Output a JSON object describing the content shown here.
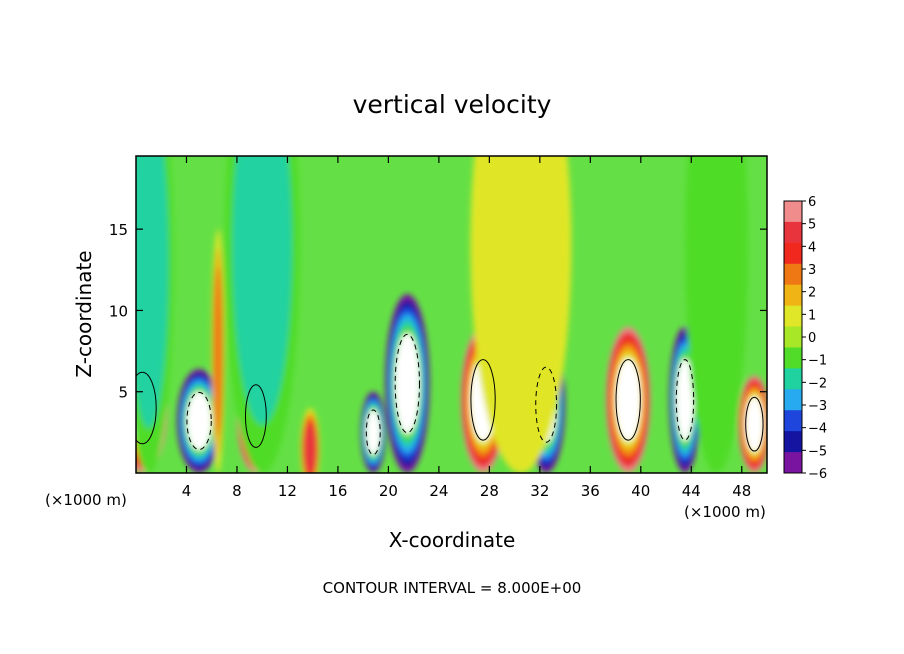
{
  "chart_data": {
    "type": "heatmap",
    "title": "vertical velocity",
    "xlabel": "X-coordinate",
    "ylabel": "Z-coordinate",
    "x_unit_left": "(×1000 m)",
    "x_unit_right": "(×1000 m)",
    "footer": "CONTOUR INTERVAL = 8.000E+00",
    "xlim": [
      0,
      50
    ],
    "ylim": [
      0,
      19.5
    ],
    "x_ticks": [
      4,
      8,
      12,
      16,
      20,
      24,
      28,
      32,
      36,
      40,
      44,
      48
    ],
    "y_ticks": [
      5,
      10,
      15
    ],
    "colorbar": {
      "levels": [
        6,
        5,
        4,
        3,
        2,
        1,
        0,
        -1,
        -2,
        -3,
        -4,
        -5,
        -6
      ],
      "labels": [
        "6",
        "5",
        "4",
        "3",
        "2",
        "1",
        "0",
        "−1",
        "−2",
        "−3",
        "−4",
        "−5",
        "−6"
      ],
      "colors": [
        "#f08c8c",
        "#e8343c",
        "#f0281e",
        "#f07814",
        "#f0b414",
        "#e0e628",
        "#a8e628",
        "#50dc28",
        "#20d2a0",
        "#28aaf0",
        "#1e46dc",
        "#1414a0",
        "#7814a0"
      ]
    },
    "background_color": "#64e046",
    "cells": [
      {
        "x": 0.5,
        "z": 4.0,
        "w": 4.0,
        "value": 16
      },
      {
        "x": 5.0,
        "z": 3.2,
        "w": 3.5,
        "value": -16
      },
      {
        "x": 9.5,
        "z": 3.5,
        "w": 3.0,
        "value": 16
      },
      {
        "x": 13.8,
        "z": 1.5,
        "w": 1.5,
        "value": 5
      },
      {
        "x": 18.8,
        "z": 2.5,
        "w": 2.0,
        "value": -10
      },
      {
        "x": 21.5,
        "z": 5.5,
        "w": 3.5,
        "value": -16
      },
      {
        "x": 27.5,
        "z": 4.5,
        "w": 3.5,
        "value": 16
      },
      {
        "x": 32.5,
        "z": 4.2,
        "w": 3.0,
        "value": -16
      },
      {
        "x": 39.0,
        "z": 4.5,
        "w": 3.5,
        "value": 16
      },
      {
        "x": 43.5,
        "z": 4.5,
        "w": 2.5,
        "value": -16
      },
      {
        "x": 49.0,
        "z": 3.0,
        "w": 2.5,
        "value": 16
      },
      {
        "x": 6.5,
        "z": 7.5,
        "w": 1.0,
        "value": 3
      },
      {
        "x": 30.5,
        "z": 14.0,
        "w": 8.0,
        "value": 0.6
      },
      {
        "x": 10.0,
        "z": 14.0,
        "w": 6.0,
        "value": -1.6
      },
      {
        "x": 1.0,
        "z": 13.0,
        "w": 4.0,
        "value": -1.8
      },
      {
        "x": 46.0,
        "z": 14.0,
        "w": 5.0,
        "value": -1.2
      }
    ]
  }
}
